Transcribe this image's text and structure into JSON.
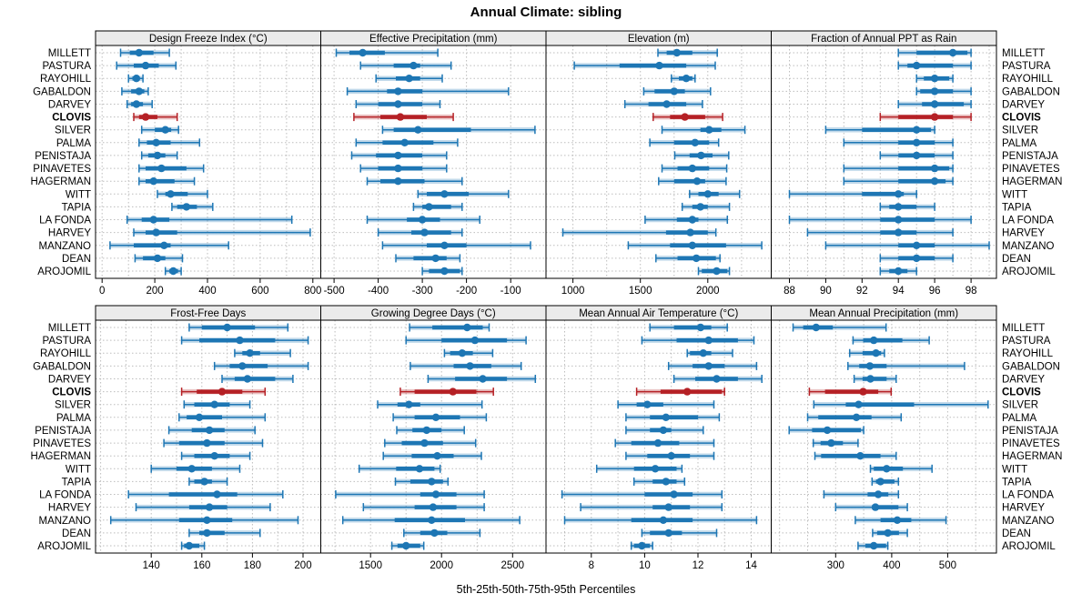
{
  "title": "Annual Climate: sibling",
  "xlabel": "5th-25th-50th-75th-95th Percentiles",
  "chart_data": {
    "type": "dotplot-trellis",
    "layout": {
      "rows": 2,
      "cols": 4,
      "legend": "none",
      "grid": "dotted"
    },
    "percentile_labels": [
      "5th",
      "25th",
      "50th",
      "75th",
      "95th"
    ],
    "sites": [
      "MILLETT",
      "PASTURA",
      "RAYOHILL",
      "GABALDON",
      "DARVEY",
      "CLOVIS",
      "SILVER",
      "PALMA",
      "PENISTAJA",
      "PINAVETES",
      "HAGERMAN",
      "WITT",
      "TAPIA",
      "LA FONDA",
      "HARVEY",
      "MANZANO",
      "DEAN",
      "AROJOMIL"
    ],
    "highlight_site": "CLOVIS",
    "colors": {
      "series": "#1d76b4",
      "highlight": "#b52025",
      "grid": "#bdbdbd",
      "strip_bg": "#ebebeb",
      "border": "#000000",
      "text": "#000000"
    },
    "panels": [
      {
        "title": "Design Freeze Index (°C)",
        "ticks": [
          0,
          200,
          400,
          600,
          800
        ],
        "xlim": [
          -25,
          830
        ],
        "minor_step": 100,
        "values": [
          [
            70,
            105,
            140,
            195,
            255
          ],
          [
            55,
            120,
            165,
            215,
            280
          ],
          [
            100,
            115,
            130,
            142,
            155
          ],
          [
            75,
            110,
            140,
            160,
            175
          ],
          [
            95,
            110,
            130,
            155,
            190
          ],
          [
            120,
            140,
            165,
            210,
            285
          ],
          [
            150,
            200,
            240,
            262,
            290
          ],
          [
            140,
            170,
            205,
            260,
            370
          ],
          [
            150,
            175,
            210,
            240,
            285
          ],
          [
            140,
            165,
            225,
            320,
            385
          ],
          [
            140,
            165,
            195,
            275,
            350
          ],
          [
            210,
            240,
            260,
            325,
            400
          ],
          [
            265,
            285,
            320,
            360,
            420
          ],
          [
            95,
            150,
            195,
            255,
            720
          ],
          [
            120,
            165,
            205,
            285,
            790
          ],
          [
            30,
            120,
            235,
            260,
            480
          ],
          [
            125,
            155,
            210,
            240,
            305
          ],
          [
            240,
            255,
            270,
            288,
            300
          ]
        ]
      },
      {
        "title": "Effective Precipitation (mm)",
        "ticks": [
          -500,
          -400,
          -300,
          -200,
          -100
        ],
        "xlim": [
          -530,
          -20
        ],
        "minor_step": null,
        "values": [
          [
            -495,
            -465,
            -435,
            -385,
            -265
          ],
          [
            -440,
            -365,
            -320,
            -305,
            -235
          ],
          [
            -405,
            -360,
            -330,
            -305,
            -255
          ],
          [
            -470,
            -380,
            -355,
            -300,
            -105
          ],
          [
            -450,
            -400,
            -355,
            -300,
            -260
          ],
          [
            -455,
            -395,
            -350,
            -290,
            -230
          ],
          [
            -390,
            -365,
            -310,
            -190,
            -45
          ],
          [
            -450,
            -390,
            -340,
            -275,
            -220
          ],
          [
            -460,
            -405,
            -355,
            -300,
            -245
          ],
          [
            -440,
            -400,
            -355,
            -300,
            -245
          ],
          [
            -425,
            -395,
            -355,
            -295,
            -210
          ],
          [
            -310,
            -290,
            -250,
            -195,
            -105
          ],
          [
            -320,
            -300,
            -285,
            -235,
            -210
          ],
          [
            -425,
            -335,
            -300,
            -260,
            -170
          ],
          [
            -400,
            -325,
            -295,
            -235,
            -210
          ],
          [
            -390,
            -290,
            -250,
            -200,
            -55
          ],
          [
            -360,
            -320,
            -270,
            -245,
            -215
          ],
          [
            -300,
            -285,
            -250,
            -215,
            -210
          ]
        ]
      },
      {
        "title": "Elevation (m)",
        "ticks": [
          1000,
          1500,
          2000
        ],
        "xlim": [
          800,
          2470
        ],
        "minor_step": 250,
        "values": [
          [
            1630,
            1695,
            1770,
            1885,
            2070
          ],
          [
            1010,
            1345,
            1640,
            1840,
            2055
          ],
          [
            1730,
            1785,
            1840,
            1885,
            1905
          ],
          [
            1525,
            1605,
            1750,
            1830,
            2020
          ],
          [
            1385,
            1560,
            1695,
            1840,
            1960
          ],
          [
            1595,
            1720,
            1830,
            1980,
            2110
          ],
          [
            1660,
            1945,
            2010,
            2100,
            2275
          ],
          [
            1570,
            1750,
            1905,
            2010,
            2080
          ],
          [
            1755,
            1865,
            1950,
            2035,
            2155
          ],
          [
            1660,
            1775,
            1885,
            2010,
            2140
          ],
          [
            1635,
            1750,
            1920,
            1980,
            2135
          ],
          [
            1865,
            1930,
            2000,
            2080,
            2235
          ],
          [
            1810,
            1885,
            1945,
            2000,
            2160
          ],
          [
            1535,
            1770,
            1885,
            1930,
            2145
          ],
          [
            925,
            1690,
            1870,
            2000,
            2060
          ],
          [
            1410,
            1720,
            1885,
            2135,
            2400
          ],
          [
            1615,
            1775,
            1915,
            2060,
            2090
          ],
          [
            1930,
            1955,
            2065,
            2145,
            2160
          ]
        ]
      },
      {
        "title": "Fraction of Annual PPT as Rain",
        "ticks": [
          88,
          90,
          92,
          94,
          96,
          98
        ],
        "xlim": [
          87,
          99.4
        ],
        "minor_step": 1,
        "values": [
          [
            94,
            95,
            97,
            97.8,
            98
          ],
          [
            94,
            94.5,
            95,
            97,
            98
          ],
          [
            95,
            95.4,
            96,
            96.8,
            97
          ],
          [
            95,
            95.2,
            96,
            97,
            98
          ],
          [
            94,
            95.3,
            96,
            97.6,
            98
          ],
          [
            93,
            94,
            96,
            97,
            98
          ],
          [
            90,
            92,
            95,
            95.8,
            96
          ],
          [
            91,
            94,
            95,
            96,
            97
          ],
          [
            93,
            94,
            95,
            96,
            97
          ],
          [
            91,
            94,
            96,
            96.8,
            97
          ],
          [
            91,
            94,
            96,
            96.6,
            97
          ],
          [
            88,
            92,
            94,
            94.3,
            95
          ],
          [
            93,
            93.5,
            94,
            95,
            96
          ],
          [
            88,
            93,
            94,
            96,
            98
          ],
          [
            89,
            93,
            94,
            95,
            97
          ],
          [
            90,
            94,
            95,
            96,
            99
          ],
          [
            93,
            94,
            95,
            96,
            97
          ],
          [
            93,
            93.5,
            94,
            94.5,
            95
          ]
        ]
      },
      {
        "title": "Frost-Free Days",
        "ticks": [
          140,
          160,
          180,
          200
        ],
        "xlim": [
          118,
          207
        ],
        "minor_step": 10,
        "values": [
          [
            155,
            160,
            170,
            181,
            194
          ],
          [
            152,
            159,
            175,
            189,
            202
          ],
          [
            173,
            176,
            179,
            183,
            195
          ],
          [
            165,
            171,
            176,
            186,
            202
          ],
          [
            168,
            173,
            178,
            189,
            196
          ],
          [
            152,
            158,
            168,
            176,
            185
          ],
          [
            153,
            157,
            165,
            171,
            179
          ],
          [
            151,
            154,
            159,
            168,
            185
          ],
          [
            147,
            156,
            163,
            169,
            181
          ],
          [
            145,
            151,
            162,
            169,
            184
          ],
          [
            152,
            157,
            165,
            171,
            179
          ],
          [
            140,
            150,
            156,
            164,
            175
          ],
          [
            155,
            157,
            161,
            164,
            170
          ],
          [
            131,
            147,
            166,
            174,
            192
          ],
          [
            134,
            155,
            163,
            170,
            187
          ],
          [
            124,
            151,
            162,
            172,
            198
          ],
          [
            155,
            159,
            162,
            169,
            183
          ],
          [
            152,
            153,
            155,
            159,
            161
          ]
        ]
      },
      {
        "title": "Growing Degree Days (°C)",
        "ticks": [
          1500,
          2000,
          2500
        ],
        "xlim": [
          1150,
          2735
        ],
        "minor_step": 250,
        "values": [
          [
            1775,
            1935,
            2180,
            2290,
            2335
          ],
          [
            1750,
            2000,
            2235,
            2460,
            2595
          ],
          [
            2020,
            2060,
            2145,
            2220,
            2360
          ],
          [
            1780,
            2085,
            2200,
            2350,
            2560
          ],
          [
            1905,
            2095,
            2290,
            2460,
            2660
          ],
          [
            1710,
            1810,
            2080,
            2245,
            2365
          ],
          [
            1550,
            1690,
            1770,
            1850,
            2285
          ],
          [
            1660,
            1810,
            1960,
            2130,
            2315
          ],
          [
            1685,
            1795,
            1895,
            2000,
            2160
          ],
          [
            1600,
            1720,
            1880,
            2010,
            2240
          ],
          [
            1590,
            1790,
            1970,
            2085,
            2280
          ],
          [
            1420,
            1680,
            1845,
            1950,
            1990
          ],
          [
            1675,
            1780,
            1930,
            2010,
            2045
          ],
          [
            1255,
            1850,
            1960,
            2105,
            2300
          ],
          [
            1450,
            1810,
            1940,
            2105,
            2300
          ],
          [
            1305,
            1670,
            1930,
            2165,
            2550
          ],
          [
            1735,
            1850,
            1950,
            2040,
            2270
          ],
          [
            1650,
            1690,
            1750,
            1850,
            1875
          ]
        ]
      },
      {
        "title": "Mean Annual Air Temperature (°C)",
        "ticks": [
          8,
          10,
          12,
          14
        ],
        "xlim": [
          6.3,
          14.75
        ],
        "minor_step": 1,
        "values": [
          [
            10.2,
            11.1,
            12.1,
            12.5,
            13.1
          ],
          [
            9.9,
            11.2,
            12.4,
            13.5,
            14.1
          ],
          [
            11.6,
            11.7,
            12.2,
            12.5,
            13.3
          ],
          [
            10.9,
            11.8,
            12.4,
            13.0,
            14.2
          ],
          [
            11.1,
            11.9,
            12.7,
            13.5,
            14.4
          ],
          [
            9.7,
            10.6,
            11.6,
            12.9,
            13.0
          ],
          [
            9.0,
            9.7,
            10.1,
            10.7,
            12.6
          ],
          [
            9.3,
            10.2,
            10.8,
            12.0,
            12.8
          ],
          [
            9.3,
            10.2,
            10.7,
            11.0,
            12.2
          ],
          [
            8.9,
            9.5,
            10.5,
            11.3,
            12.6
          ],
          [
            9.3,
            10.1,
            11.0,
            11.7,
            12.6
          ],
          [
            8.2,
            9.6,
            10.4,
            11.2,
            11.4
          ],
          [
            9.6,
            10.3,
            10.8,
            11.2,
            11.5
          ],
          [
            6.9,
            10.0,
            11.1,
            11.8,
            12.9
          ],
          [
            7.6,
            10.3,
            10.9,
            11.7,
            12.9
          ],
          [
            7.0,
            9.5,
            10.7,
            11.8,
            14.2
          ],
          [
            9.9,
            10.2,
            10.9,
            11.4,
            12.7
          ],
          [
            9.5,
            9.6,
            9.9,
            10.2,
            10.3
          ]
        ]
      },
      {
        "title": "Mean Annual Precipitation (mm)",
        "ticks": [
          300,
          400,
          500
        ],
        "xlim": [
          185,
          587
        ],
        "minor_step": 50,
        "values": [
          [
            224,
            242,
            265,
            295,
            390
          ],
          [
            331,
            349,
            368,
            419,
            467
          ],
          [
            325,
            348,
            372,
            381,
            387
          ],
          [
            322,
            342,
            361,
            391,
            530
          ],
          [
            333,
            348,
            362,
            391,
            408
          ],
          [
            253,
            281,
            349,
            376,
            399
          ],
          [
            261,
            318,
            341,
            440,
            572
          ],
          [
            250,
            269,
            337,
            364,
            417
          ],
          [
            217,
            258,
            285,
            345,
            350
          ],
          [
            260,
            273,
            292,
            313,
            340
          ],
          [
            263,
            274,
            344,
            380,
            408
          ],
          [
            362,
            368,
            391,
            420,
            472
          ],
          [
            365,
            372,
            380,
            405,
            412
          ],
          [
            279,
            357,
            376,
            394,
            412
          ],
          [
            300,
            365,
            371,
            412,
            428
          ],
          [
            335,
            380,
            410,
            435,
            497
          ],
          [
            366,
            374,
            393,
            413,
            428
          ],
          [
            340,
            353,
            368,
            390,
            393
          ]
        ]
      }
    ]
  }
}
